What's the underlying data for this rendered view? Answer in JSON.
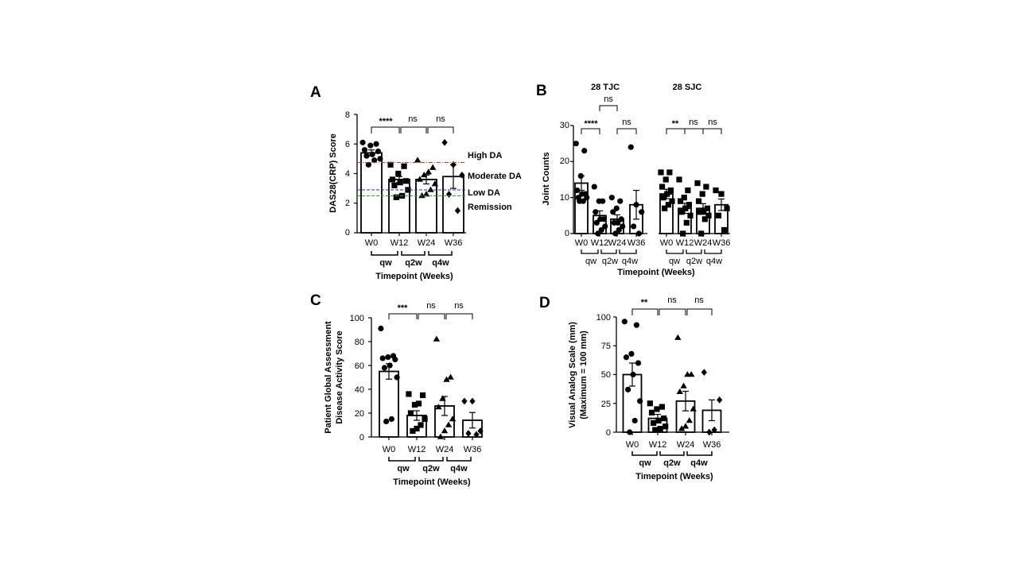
{
  "figure": {
    "panels": [
      {
        "id": "A",
        "panel_label": "A",
        "ylabel": "DAS28(CRP) Score",
        "xlabel": "Timepoint (Weeks)",
        "yticks": [
          "0",
          "2",
          "4",
          "6",
          "8"
        ],
        "categories": [
          "W0",
          "W12",
          "W24",
          "W36"
        ],
        "groups": [
          "qw",
          "q2w",
          "q4w"
        ],
        "significance": [
          "****",
          "ns",
          "ns"
        ],
        "ref_lines": [
          {
            "label": "High DA",
            "value": 4.75,
            "color": "#c0392b"
          },
          {
            "label": "Moderate DA",
            "value": 2.9,
            "color": "#1f2fb5"
          },
          {
            "label": "Low DA",
            "value": 2.5,
            "color": "#2ca02c"
          },
          {
            "label": "Remission",
            "value": null,
            "color": "#d63384"
          }
        ]
      },
      {
        "id": "B",
        "panel_label": "B",
        "subtitle_left": "28 TJC",
        "subtitle_right": "28 SJC",
        "ylabel": "Joint Counts",
        "xlabel": "Timepoint (Weeks)",
        "yticks": [
          "0",
          "10",
          "20",
          "30"
        ],
        "categories": [
          "W0",
          "W12",
          "W24",
          "W36"
        ],
        "groups": [
          "qw",
          "q2w",
          "q4w"
        ],
        "significance_left": [
          "****",
          "ns",
          "ns"
        ],
        "significance_right": [
          "**",
          "ns",
          "ns"
        ]
      },
      {
        "id": "C",
        "panel_label": "C",
        "ylabel_line1": "Patient Global Assessment",
        "ylabel_line2": "Disease Activity Score",
        "xlabel": "Timepoint (Weeks)",
        "yticks": [
          "0",
          "20",
          "40",
          "60",
          "80",
          "100"
        ],
        "categories": [
          "W0",
          "W12",
          "W24",
          "W36"
        ],
        "groups": [
          "qw",
          "q2w",
          "q4w"
        ],
        "significance": [
          "***",
          "ns",
          "ns"
        ]
      },
      {
        "id": "D",
        "panel_label": "D",
        "ylabel_line1": "Visual Analog Scale (mm)",
        "ylabel_line2": "(Maximum = 100 mm)",
        "xlabel": "Timepoint (Weeks)",
        "yticks": [
          "0",
          "25",
          "50",
          "75",
          "100"
        ],
        "categories": [
          "W0",
          "W12",
          "W24",
          "W36"
        ],
        "groups": [
          "qw",
          "q2w",
          "q4w"
        ],
        "significance": [
          "**",
          "ns",
          "ns"
        ]
      }
    ]
  },
  "chart_data": [
    {
      "type": "bar",
      "panel": "A",
      "ylabel": "DAS28(CRP) Score",
      "xlabel": "Timepoint (Weeks)",
      "ylim": [
        0,
        8
      ],
      "categories": [
        "W0",
        "W12",
        "W24",
        "W36"
      ],
      "means": [
        5.4,
        3.6,
        3.6,
        3.8
      ],
      "sem": [
        0.2,
        0.2,
        0.3,
        0.8
      ],
      "markers": [
        "circle",
        "square",
        "triangle",
        "diamond"
      ],
      "points": [
        [
          6.1,
          6.0,
          5.9,
          5.6,
          5.5,
          5.3,
          5.2,
          5.0,
          4.9,
          4.6
        ],
        [
          4.6,
          4.5,
          4.0,
          3.6,
          3.5,
          3.4,
          3.2,
          2.9,
          2.5,
          2.4
        ],
        [
          4.9,
          4.4,
          4.1,
          3.9,
          3.6,
          3.3,
          2.9,
          2.6,
          2.5
        ],
        [
          6.1,
          4.6,
          3.9,
          2.6,
          1.5
        ]
      ]
    },
    {
      "type": "bar",
      "panel": "B",
      "ylabel": "Joint Counts",
      "xlabel": "Timepoint (Weeks)",
      "ylim": [
        0,
        30
      ],
      "categories": [
        "W0",
        "W12",
        "W24",
        "W36"
      ],
      "series": [
        {
          "name": "28 TJC",
          "means": [
            14,
            5,
            4,
            8
          ],
          "sem": [
            2.0,
            1.3,
            1.2,
            4.0
          ],
          "markers": [
            "circle",
            "circle",
            "circle",
            "circle"
          ],
          "points": [
            [
              25,
              23,
              16,
              12,
              11,
              11,
              10,
              10,
              9,
              9
            ],
            [
              13,
              9,
              9,
              6,
              4,
              4,
              3,
              2,
              1,
              0
            ],
            [
              10,
              9,
              7,
              6,
              4,
              3,
              3,
              2,
              1,
              0
            ],
            [
              24,
              8,
              6,
              2,
              0
            ]
          ]
        },
        {
          "name": "28 SJC",
          "means": [
            11,
            7,
            7,
            8
          ],
          "sem": [
            1.3,
            1.4,
            1.3,
            1.6
          ],
          "markers": [
            "square",
            "square",
            "square",
            "square"
          ],
          "points": [
            [
              17,
              17,
              15,
              13,
              12,
              11,
              10,
              9,
              8,
              7
            ],
            [
              15,
              12,
              10,
              9,
              8,
              7,
              6,
              5,
              3,
              0
            ],
            [
              14,
              13,
              11,
              9,
              7,
              6,
              6,
              5,
              4,
              0
            ],
            [
              12,
              11,
              7,
              5,
              1
            ]
          ]
        }
      ]
    },
    {
      "type": "bar",
      "panel": "C",
      "xlabel": "Timepoint (Weeks)",
      "ylim": [
        0,
        100
      ],
      "categories": [
        "W0",
        "W12",
        "W24",
        "W36"
      ],
      "means": [
        55,
        18,
        26,
        14
      ],
      "sem": [
        6.5,
        4.0,
        8.0,
        6.5
      ],
      "markers": [
        "circle",
        "square",
        "triangle",
        "diamond"
      ],
      "points": [
        [
          91,
          68,
          67,
          66,
          65,
          60,
          58,
          50,
          15,
          13
        ],
        [
          36,
          35,
          28,
          27,
          20,
          15,
          10,
          7,
          5
        ],
        [
          82,
          50,
          48,
          32,
          25,
          15,
          10,
          5,
          0
        ],
        [
          30,
          30,
          5,
          3,
          2
        ]
      ]
    },
    {
      "type": "bar",
      "panel": "D",
      "xlabel": "Timepoint (Weeks)",
      "ylim": [
        0,
        100
      ],
      "categories": [
        "W0",
        "W12",
        "W24",
        "W36"
      ],
      "means": [
        50,
        12,
        27,
        19
      ],
      "sem": [
        10,
        3.5,
        8.5,
        9.0
      ],
      "markers": [
        "circle",
        "square",
        "triangle",
        "diamond"
      ],
      "points": [
        [
          96,
          93,
          68,
          65,
          60,
          50,
          37,
          27,
          10,
          0
        ],
        [
          25,
          22,
          20,
          17,
          12,
          10,
          8,
          5,
          3,
          2
        ],
        [
          82,
          50,
          50,
          40,
          35,
          20,
          10,
          5,
          3
        ],
        [
          52,
          28,
          2,
          0
        ]
      ]
    }
  ]
}
